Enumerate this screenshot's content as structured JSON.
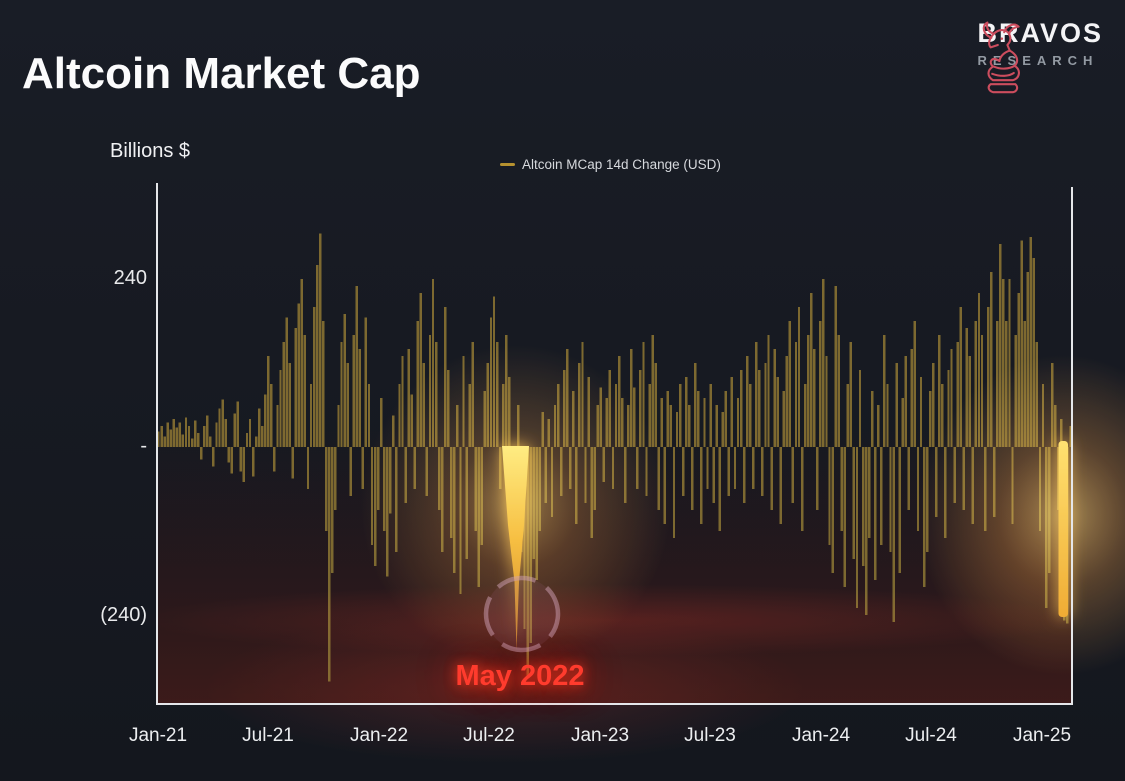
{
  "header": {
    "title": "Altcoin Market Cap",
    "brand_name": "BRAVOS",
    "brand_subtitle": "RESEARCH"
  },
  "chart": {
    "axis_unit_label": "Billions $",
    "legend_label": "Altcoin MCap 14d Change (USD)",
    "annotation_label": "May 2022",
    "y_ticks": [
      {
        "label": "240",
        "value": 240
      },
      {
        "label": "-",
        "value": 0
      },
      {
        "label": "(240)",
        "value": -240
      }
    ],
    "x_ticks": [
      "Jan-21",
      "Jul-21",
      "Jan-22",
      "Jul-22",
      "Jan-23",
      "Jul-23",
      "Jan-24",
      "Jul-24",
      "Jan-25"
    ]
  },
  "colors": {
    "background": "#171a22",
    "bar": "#7d6930",
    "highlight_bar": "#ffd44d",
    "threshold_red": "#ff2418",
    "axis_line": "#e5e7ea",
    "brand_accent": "#cc4d5e",
    "annotation_red": "#ff3b2d"
  },
  "chart_data": {
    "type": "bar",
    "title": "Altcoin Market Cap",
    "series_name": "Altcoin MCap 14d Change (USD)",
    "ylabel": "Billions $",
    "ylim": [
      -375,
      375
    ],
    "y_tick_values": [
      240,
      0,
      -240
    ],
    "x_tick_labels": [
      "Jan-21",
      "Jul-21",
      "Jan-22",
      "Jul-22",
      "Jan-23",
      "Jul-23",
      "Jan-24",
      "Jul-24",
      "Jan-25"
    ],
    "grid": false,
    "legend_position": "top-center",
    "threshold_line": {
      "value": -240,
      "style": "dashed",
      "color": "#ff2418"
    },
    "annotation": {
      "label": "May 2022",
      "highlighted_indices": [
        120,
        121,
        122
      ]
    },
    "highlighted_jan_2025_indices": [
      297,
      298
    ],
    "values": [
      22,
      30,
      15,
      35,
      25,
      40,
      28,
      35,
      18,
      42,
      30,
      12,
      38,
      20,
      -18,
      30,
      45,
      15,
      -28,
      35,
      55,
      68,
      40,
      -22,
      -38,
      48,
      65,
      -35,
      -50,
      20,
      40,
      -42,
      15,
      55,
      30,
      75,
      130,
      90,
      -35,
      60,
      110,
      150,
      185,
      120,
      -45,
      170,
      205,
      240,
      160,
      -60,
      90,
      200,
      260,
      305,
      180,
      -120,
      -335,
      -180,
      -90,
      60,
      150,
      190,
      120,
      -70,
      160,
      230,
      140,
      -60,
      185,
      90,
      -140,
      -170,
      -90,
      70,
      -120,
      -185,
      -95,
      45,
      -150,
      90,
      130,
      -80,
      140,
      75,
      -60,
      180,
      220,
      120,
      -70,
      160,
      240,
      150,
      -90,
      -150,
      200,
      110,
      -130,
      -180,
      60,
      -210,
      130,
      -160,
      90,
      150,
      -120,
      -200,
      -140,
      80,
      120,
      185,
      215,
      150,
      -60,
      90,
      160,
      100,
      -90,
      -140,
      60,
      -150,
      -260,
      -330,
      -280,
      -160,
      -190,
      -120,
      50,
      -80,
      40,
      -100,
      60,
      90,
      -70,
      110,
      140,
      -60,
      80,
      -110,
      120,
      150,
      -80,
      100,
      -130,
      -90,
      60,
      85,
      -50,
      70,
      110,
      -60,
      90,
      130,
      70,
      -80,
      60,
      140,
      85,
      -60,
      110,
      150,
      -70,
      90,
      160,
      120,
      -90,
      70,
      -110,
      80,
      60,
      -130,
      50,
      90,
      -70,
      100,
      60,
      -90,
      120,
      80,
      -110,
      70,
      -60,
      90,
      -80,
      60,
      -120,
      50,
      80,
      -70,
      100,
      -60,
      70,
      110,
      -80,
      130,
      90,
      -60,
      150,
      110,
      -70,
      120,
      160,
      -90,
      140,
      100,
      -110,
      80,
      130,
      180,
      -80,
      150,
      200,
      -120,
      90,
      160,
      220,
      140,
      -90,
      180,
      240,
      130,
      -140,
      -180,
      230,
      160,
      -120,
      -200,
      90,
      150,
      -160,
      -230,
      110,
      -170,
      -240,
      -130,
      80,
      -190,
      60,
      -140,
      160,
      90,
      -150,
      -250,
      120,
      -180,
      70,
      130,
      -90,
      140,
      180,
      -120,
      100,
      -200,
      -150,
      80,
      120,
      -100,
      160,
      90,
      -130,
      110,
      140,
      -80,
      150,
      200,
      -90,
      170,
      130,
      -110,
      180,
      220,
      160,
      -120,
      200,
      250,
      -100,
      180,
      290,
      240,
      180,
      240,
      -110,
      160,
      220,
      295,
      180,
      250,
      300,
      270,
      150,
      -120,
      90,
      -230,
      -180,
      120,
      60,
      -90,
      40,
      -248,
      -252,
      30
    ]
  }
}
